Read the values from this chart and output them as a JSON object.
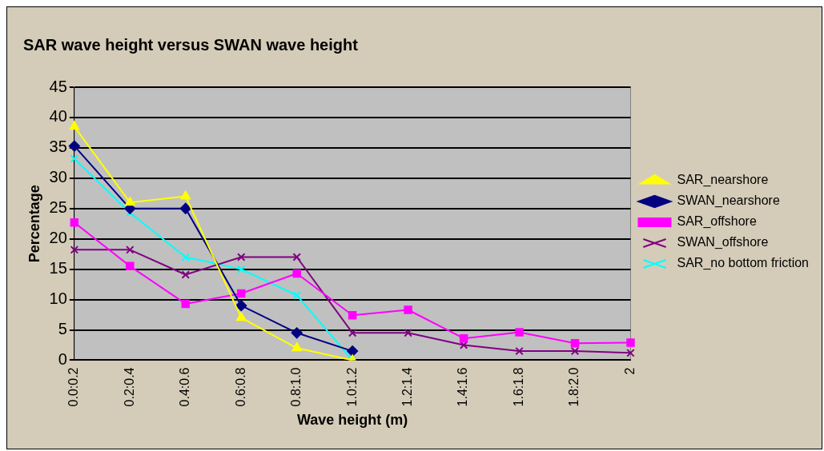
{
  "chart_data": {
    "type": "line",
    "title": "SAR wave height versus SWAN wave height",
    "xlabel": "Wave height (m)",
    "ylabel": "Percentage",
    "categories": [
      "0.0:0.2",
      "0.2:0.4",
      "0.4:0.6",
      "0.6:0.8",
      "0.8:1.0",
      "1.0:1.2",
      "1.2:1.4",
      "1.4:1.6",
      "1.6:1.8",
      "1.8:2.0",
      "2"
    ],
    "series": [
      {
        "name": "SAR_nearshore",
        "color": "#ffff00",
        "marker": "triangle",
        "values": [
          38.5,
          26,
          27,
          7,
          2,
          0,
          null,
          null,
          null,
          null,
          null
        ]
      },
      {
        "name": "SWAN_nearshore",
        "color": "#000080",
        "marker": "diamond",
        "values": [
          35.3,
          25,
          25,
          9,
          4.5,
          1.5,
          null,
          null,
          null,
          null,
          null
        ]
      },
      {
        "name": "SAR_offshore",
        "color": "#ff00ff",
        "marker": "square",
        "values": [
          22.7,
          15.5,
          9.3,
          11,
          14.3,
          7.4,
          8.3,
          3.6,
          4.6,
          2.8,
          2.9
        ]
      },
      {
        "name": "SWAN_offshore",
        "color": "#800080",
        "marker": "cross",
        "values": [
          18.2,
          18.2,
          14.1,
          17,
          17,
          4.5,
          4.5,
          2.5,
          1.5,
          1.5,
          1.2
        ]
      },
      {
        "name": "SAR_no bottom friction",
        "color": "#00ffff",
        "marker": "cross",
        "values": [
          33.2,
          24.3,
          17,
          15,
          10.7,
          0,
          null,
          null,
          null,
          null,
          null
        ]
      }
    ],
    "ylim": [
      0,
      45
    ],
    "yticks": [
      0,
      5,
      10,
      15,
      20,
      25,
      30,
      35,
      40,
      45
    ],
    "grid": "y",
    "legend": "right"
  }
}
